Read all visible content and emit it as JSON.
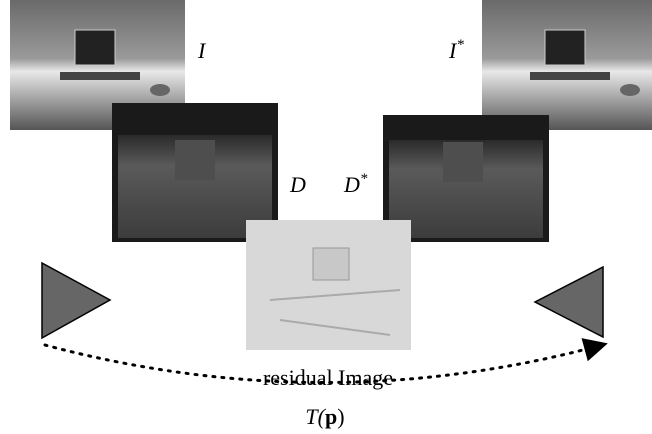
{
  "labels": {
    "intensity": {
      "base": "I"
    },
    "intensity_star": {
      "base": "I",
      "sup": "*"
    },
    "depth": {
      "base": "D"
    },
    "depth_star": {
      "base": "D",
      "sup": "*"
    },
    "residual": "residual Image",
    "transform": {
      "before": "T(",
      "bold": "p",
      "after": ")"
    }
  }
}
